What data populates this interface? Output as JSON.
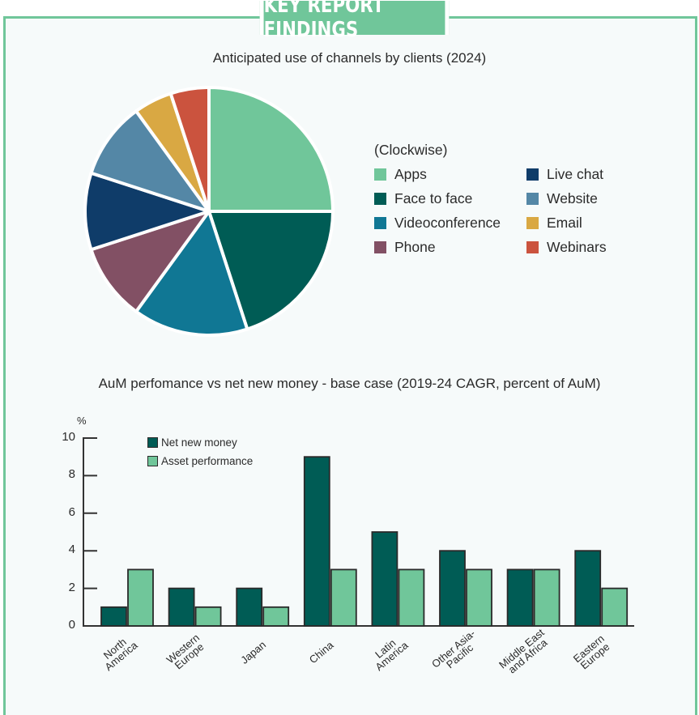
{
  "header": {
    "title": "KEY REPORT FINDINGS"
  },
  "colors": {
    "frame": "#70c69a",
    "background": "#f6fafa",
    "net_new_money": "#005c55",
    "asset_performance": "#70c69a"
  },
  "chart_data": [
    {
      "type": "pie",
      "title": "Anticipated use of channels by clients (2024)",
      "legend_caption": "(Clockwise)",
      "legend_position": "right",
      "unit": "percent (estimated)",
      "slices": [
        {
          "label": "Apps",
          "value": 25,
          "color": "#70c69a"
        },
        {
          "label": "Face to face",
          "value": 20,
          "color": "#005c55"
        },
        {
          "label": "Videoconference",
          "value": 15,
          "color": "#107794"
        },
        {
          "label": "Phone",
          "value": 10,
          "color": "#825064"
        },
        {
          "label": "Live chat",
          "value": 10,
          "color": "#0f3c69"
        },
        {
          "label": "Website",
          "value": 10,
          "color": "#5487a6"
        },
        {
          "label": "Email",
          "value": 5,
          "color": "#d9a843"
        },
        {
          "label": "Webinars",
          "value": 5,
          "color": "#cb533e"
        }
      ]
    },
    {
      "type": "bar",
      "title": "AuM perfomance vs net new money - base case (2019-24 CAGR, percent of AuM)",
      "ylabel": "%",
      "xlabel": "",
      "ylim": [
        0,
        10
      ],
      "yticks": [
        "0",
        "2",
        "4",
        "6",
        "8",
        "10"
      ],
      "grid": false,
      "legend_position": "top-left",
      "categories": [
        "North\nAmerica",
        "Western\nEurope",
        "Japan",
        "China",
        "Latin\nAmerica",
        "Other Asia-\nPacific",
        "Middle East\nand Africa",
        "Eastern\nEurope"
      ],
      "series": [
        {
          "name": "Net new money",
          "color": "#005c55",
          "values": [
            1,
            2,
            2,
            9,
            5,
            4,
            3,
            4
          ]
        },
        {
          "name": "Asset performance",
          "color": "#70c69a",
          "values": [
            3,
            1,
            1,
            3,
            3,
            3,
            3,
            2
          ]
        }
      ]
    }
  ]
}
